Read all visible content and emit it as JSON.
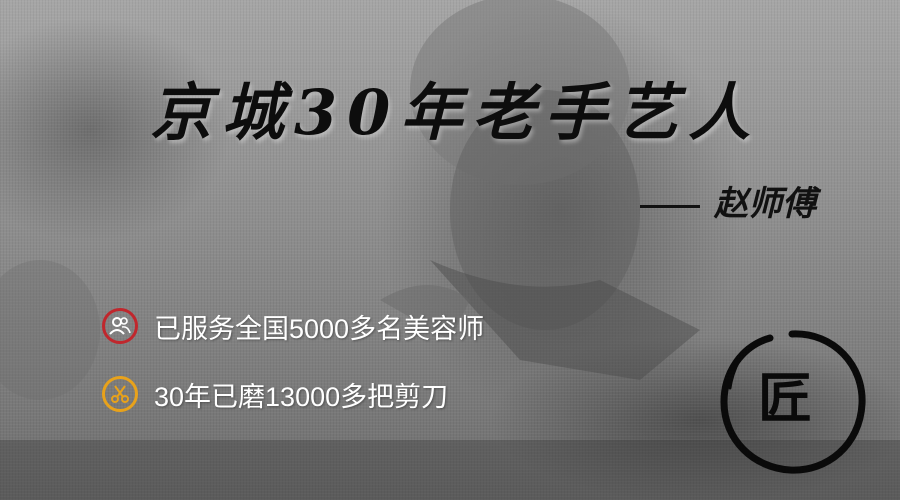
{
  "banner": {
    "title": "京城30年老手艺人",
    "signature": "赵师傅",
    "features": [
      {
        "icon": "users-icon",
        "text": "已服务全国5000多名美容师",
        "accent": "#c0272d"
      },
      {
        "icon": "scissors-icon",
        "text": "30年已磨13000多把剪刀",
        "accent": "#e8a21b"
      }
    ],
    "stamp_char": "匠"
  }
}
